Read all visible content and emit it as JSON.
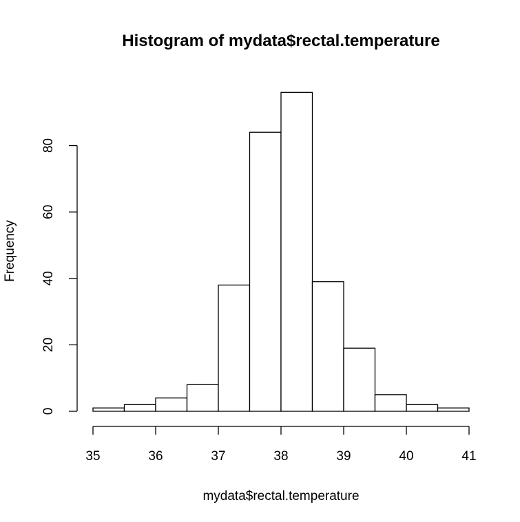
{
  "chart_data": {
    "type": "bar",
    "title": "Histogram of mydata$rectal.temperature",
    "xlabel": "mydata$rectal.temperature",
    "ylabel": "Frequency",
    "bins": [
      {
        "start": 35.0,
        "end": 35.5,
        "count": 1
      },
      {
        "start": 35.5,
        "end": 36.0,
        "count": 2
      },
      {
        "start": 36.0,
        "end": 36.5,
        "count": 4
      },
      {
        "start": 36.5,
        "end": 37.0,
        "count": 8
      },
      {
        "start": 37.0,
        "end": 37.5,
        "count": 38
      },
      {
        "start": 37.5,
        "end": 38.0,
        "count": 84
      },
      {
        "start": 38.0,
        "end": 38.5,
        "count": 96
      },
      {
        "start": 38.5,
        "end": 39.0,
        "count": 39
      },
      {
        "start": 39.0,
        "end": 39.5,
        "count": 19
      },
      {
        "start": 39.5,
        "end": 40.0,
        "count": 5
      },
      {
        "start": 40.0,
        "end": 40.5,
        "count": 2
      },
      {
        "start": 40.5,
        "end": 41.0,
        "count": 1
      }
    ],
    "x_ticks": [
      "35",
      "36",
      "37",
      "38",
      "39",
      "40",
      "41"
    ],
    "y_ticks": [
      "0",
      "20",
      "40",
      "60",
      "80"
    ],
    "xlim": [
      35,
      41
    ],
    "ylim": [
      0,
      96
    ],
    "grid": false,
    "legend": "none"
  }
}
